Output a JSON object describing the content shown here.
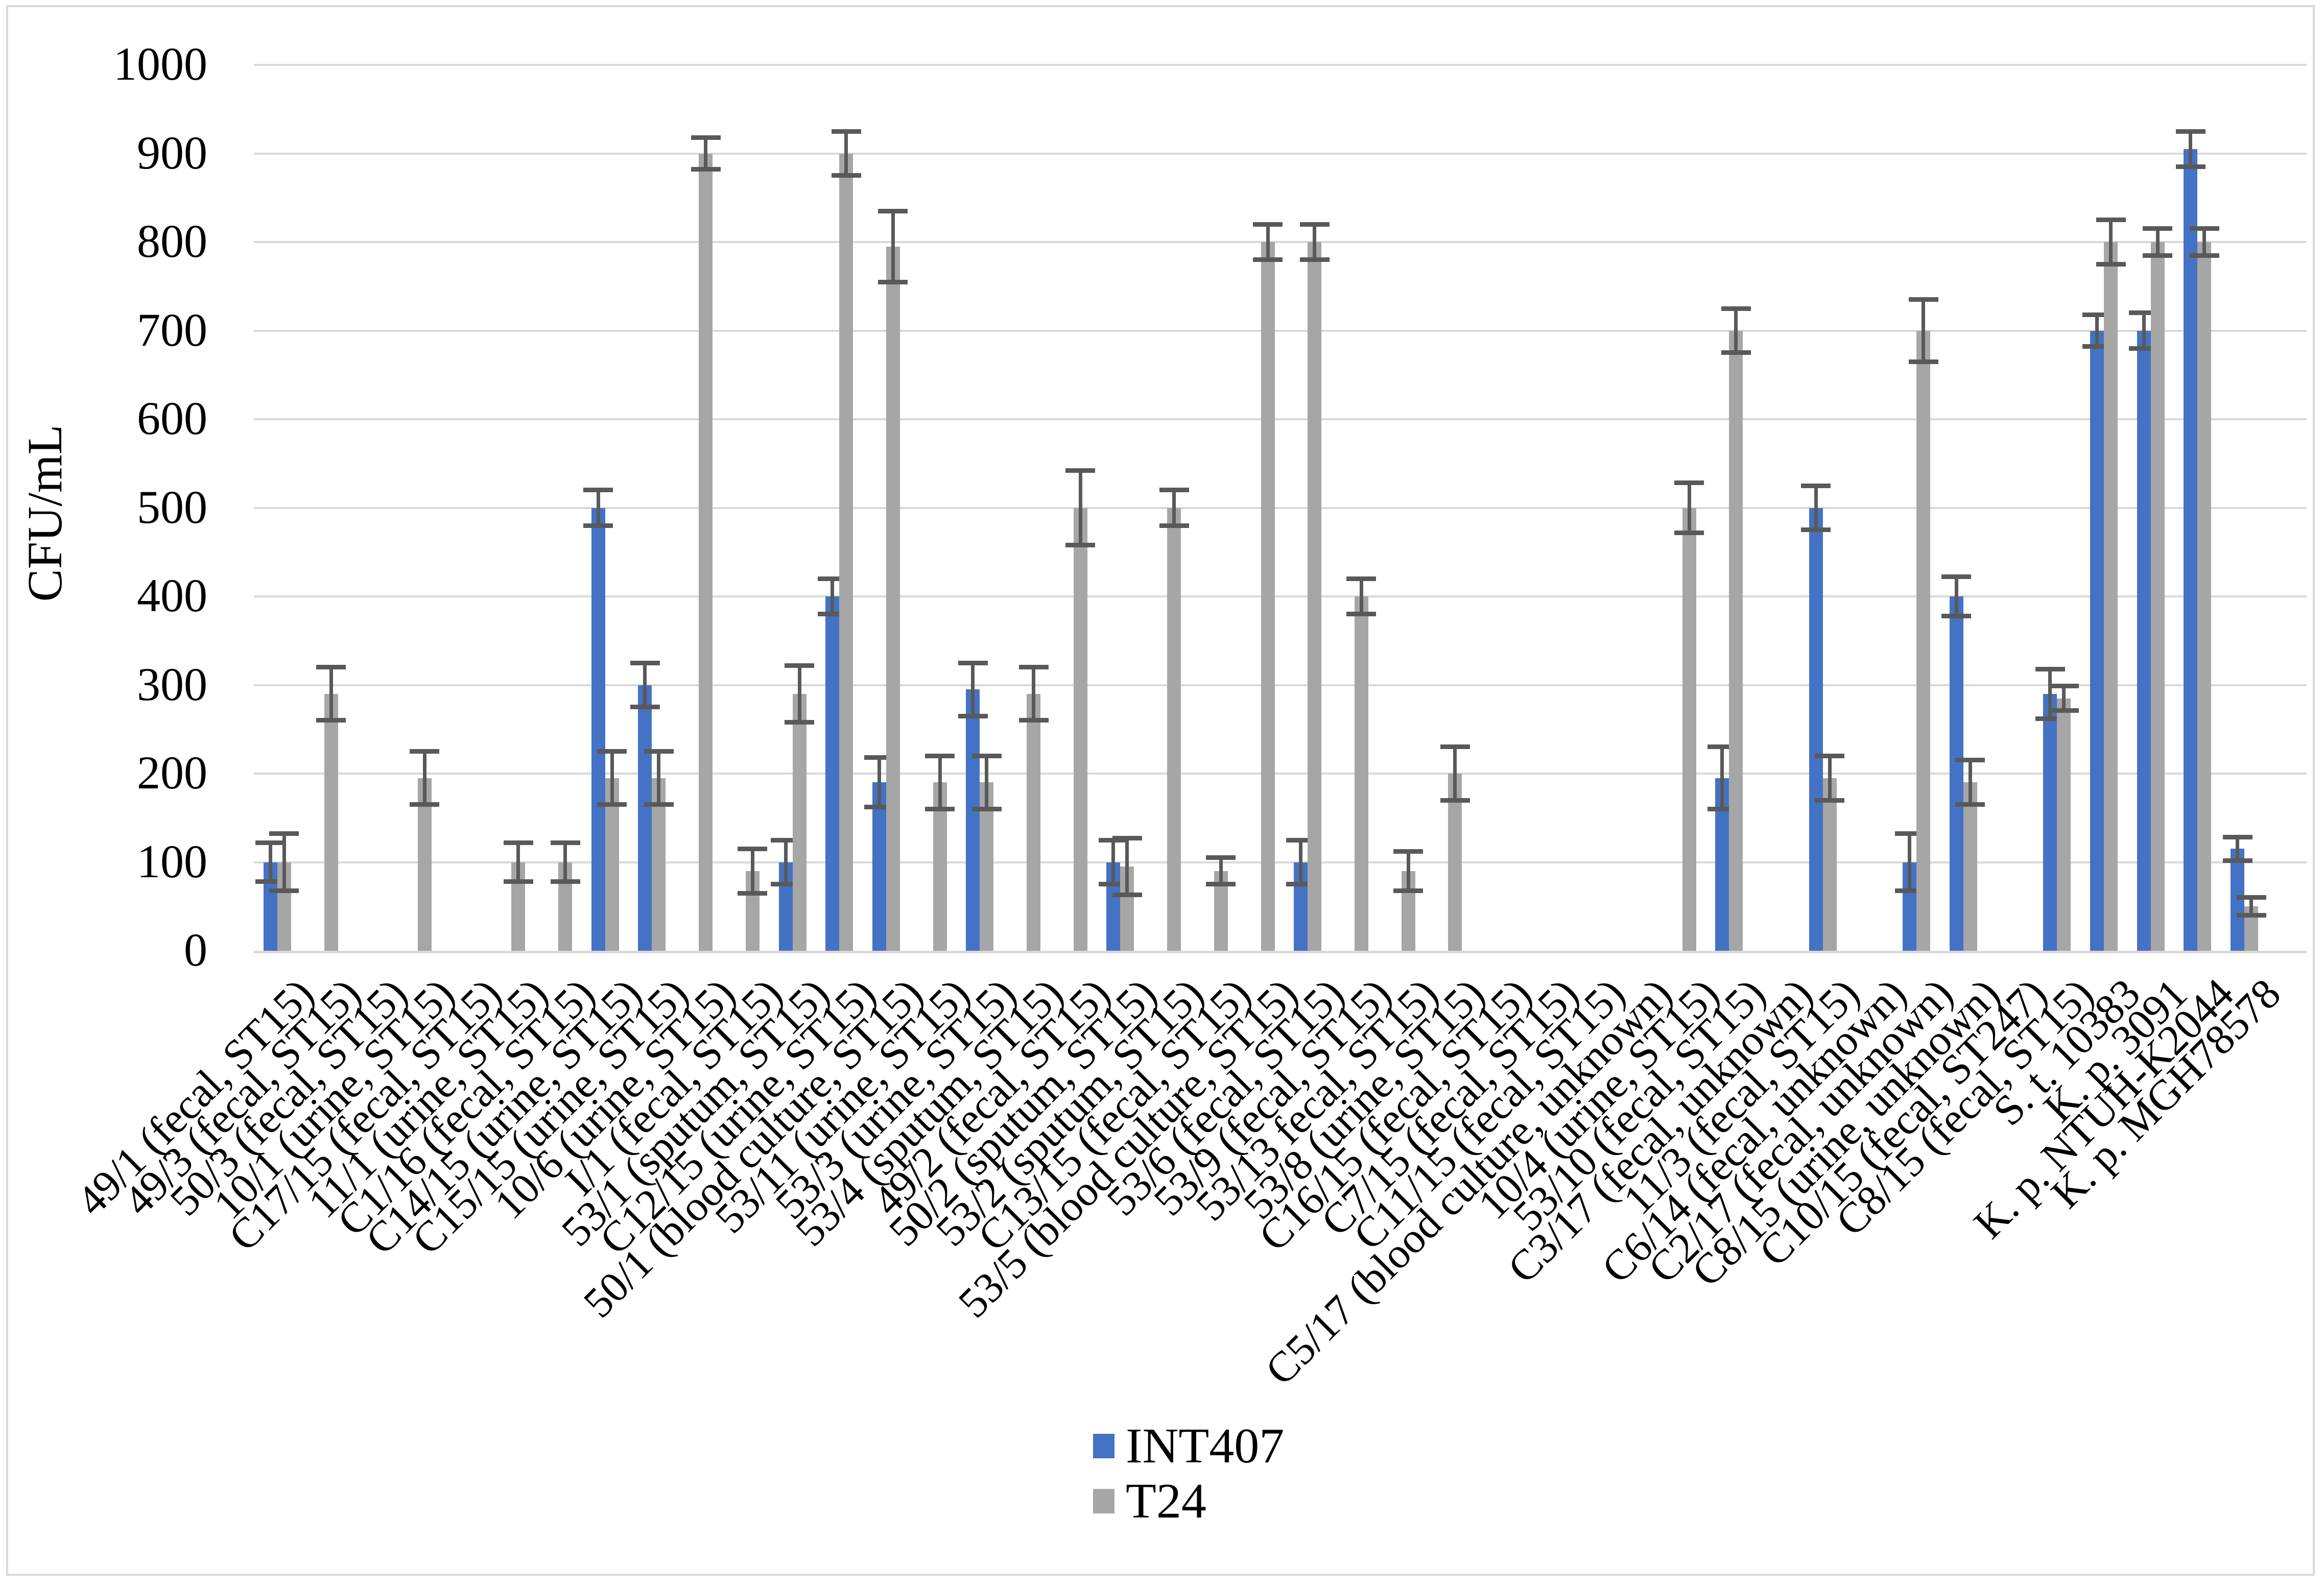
{
  "chart_data": {
    "type": "bar",
    "title": "",
    "xlabel": "",
    "ylabel": "CFU/mL",
    "ylim": [
      0,
      1000
    ],
    "ytick_step": 100,
    "yticks": [
      0,
      100,
      200,
      300,
      400,
      500,
      600,
      700,
      800,
      900,
      1000
    ],
    "grid": true,
    "legend_position": "bottom-center",
    "gridline_color": "#D9D9D9",
    "error_bar_color": "#595959",
    "categories": [
      "49/1 (fecal, ST15)",
      "49/3 (fecal, ST15)",
      "50/3 (fecal, ST15)",
      "10/1 (urine, ST15)",
      "C17/15 (fecal, ST15)",
      "11/1 (urine, ST15)",
      "C1/16 (fecal, ST15)",
      "C14/15 (urine, ST15)",
      "C15/15 (urine, ST15)",
      "10/6 (urine, ST15)",
      "I/1 (fecal, ST15)",
      "53/1 (sputum, ST15)",
      "C12/15 (urine, ST15)",
      "50/1 (blood culture, ST15)",
      "53/11 (urine, ST15)",
      "53/3 (urine, ST15)",
      "53/4 (sputum, ST15)",
      "49/2 (fecal, ST15)",
      "50/2 (sputum, ST15)",
      "53/2 (sputum, ST15)",
      "C13/15 (fecal, ST15)",
      "53/5 (blood culture, ST15)",
      "53/6 (fecal, ST15)",
      "53/9 (fecal, ST15)",
      "53/13 fecal, ST15)",
      "53/8 (urine, ST15)",
      "C16/15 (fecal, ST15)",
      "C7/15 (fecal, ST15)",
      "C11/15 (fecal, ST15)",
      "C5/17 (blood culture, unknown)",
      "10/4 (urine, ST15)",
      "53/10 (fecal, ST15)",
      "C3/17 (fecal, unknown)",
      "11/3 (fecal, ST15)",
      "C6/14 (fecal, unknown)",
      "C2/17 (fecal, unknown)",
      "C8/15 (urine, unknown)",
      "C10/15 (fecal, ST247)",
      "C8/15 (fecal, ST15)",
      "S. t. 10383",
      "K. p. 3091",
      "K. p. NTUH-K2044",
      "K. p. MGH78578"
    ],
    "series": [
      {
        "name": "INT407",
        "color": "#4472C4",
        "values": [
          100,
          0,
          0,
          0,
          0,
          0,
          0,
          500,
          300,
          0,
          0,
          100,
          400,
          190,
          0,
          295,
          0,
          0,
          100,
          0,
          0,
          0,
          100,
          0,
          0,
          0,
          0,
          0,
          0,
          0,
          0,
          195,
          0,
          500,
          0,
          100,
          400,
          0,
          290,
          700,
          700,
          905,
          115
        ],
        "errors": [
          22,
          0,
          0,
          0,
          0,
          0,
          0,
          20,
          25,
          0,
          0,
          25,
          20,
          28,
          0,
          30,
          0,
          0,
          25,
          0,
          0,
          0,
          25,
          0,
          0,
          0,
          0,
          0,
          0,
          0,
          0,
          35,
          0,
          25,
          0,
          32,
          22,
          0,
          28,
          18,
          20,
          20,
          13
        ]
      },
      {
        "name": "T24",
        "color": "#A6A6A6",
        "values": [
          100,
          290,
          0,
          195,
          0,
          100,
          100,
          195,
          195,
          900,
          90,
          290,
          900,
          795,
          190,
          190,
          290,
          500,
          95,
          500,
          90,
          800,
          800,
          400,
          90,
          200,
          0,
          0,
          0,
          0,
          500,
          700,
          0,
          195,
          0,
          700,
          190,
          0,
          285,
          800,
          800,
          800,
          50
        ],
        "errors": [
          32,
          30,
          0,
          30,
          0,
          22,
          22,
          30,
          30,
          18,
          25,
          32,
          25,
          40,
          30,
          30,
          30,
          42,
          32,
          20,
          15,
          20,
          20,
          20,
          22,
          30,
          0,
          0,
          0,
          0,
          28,
          25,
          0,
          25,
          0,
          35,
          25,
          0,
          14,
          25,
          15,
          15,
          10
        ]
      }
    ]
  }
}
